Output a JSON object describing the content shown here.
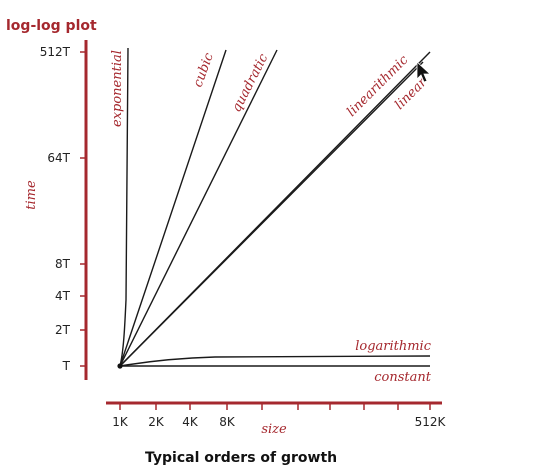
{
  "title": "log-log plot",
  "caption": "Typical orders of growth",
  "chart_data": {
    "type": "line",
    "title": "log-log plot",
    "xlabel": "size",
    "ylabel": "time",
    "x_scale": "log",
    "y_scale": "log",
    "x_ticks": [
      "1K",
      "2K",
      "4K",
      "8K",
      "512K"
    ],
    "y_ticks": [
      "T",
      "2T",
      "4T",
      "8T",
      "64T",
      "512T"
    ],
    "grid": false,
    "series": [
      {
        "name": "constant",
        "label": "constant",
        "x": [
          "1K",
          "512K"
        ],
        "y": [
          "T",
          "T"
        ]
      },
      {
        "name": "logarithmic",
        "label": "logarithmic",
        "x": [
          "1K",
          "2K",
          "4K",
          "8K",
          "512K"
        ],
        "y": [
          "T",
          "T",
          "T",
          "T",
          "T"
        ]
      },
      {
        "name": "linear",
        "label": "linear",
        "x": [
          "1K",
          "512K"
        ],
        "y": [
          "T",
          "512T"
        ]
      },
      {
        "name": "linearithmic",
        "label": "linearithmic",
        "x": [
          "1K",
          "512K"
        ],
        "y": [
          "T",
          "512T"
        ]
      },
      {
        "name": "quadratic",
        "label": "quadratic",
        "x": [
          "1K",
          "8K"
        ],
        "y": [
          "T",
          "64T"
        ]
      },
      {
        "name": "cubic",
        "label": "cubic",
        "x": [
          "1K",
          "8K"
        ],
        "y": [
          "T",
          "512T"
        ]
      },
      {
        "name": "exponential",
        "label": "exponential",
        "x": [
          "1K",
          "1K"
        ],
        "y": [
          "T",
          "512T"
        ]
      }
    ]
  },
  "colors": {
    "axis": "#a5282e",
    "curve": "#1a1a1a",
    "label": "#a5282e",
    "cursor": "#111111"
  },
  "icons": {
    "cursor": "mouse-pointer-icon"
  }
}
